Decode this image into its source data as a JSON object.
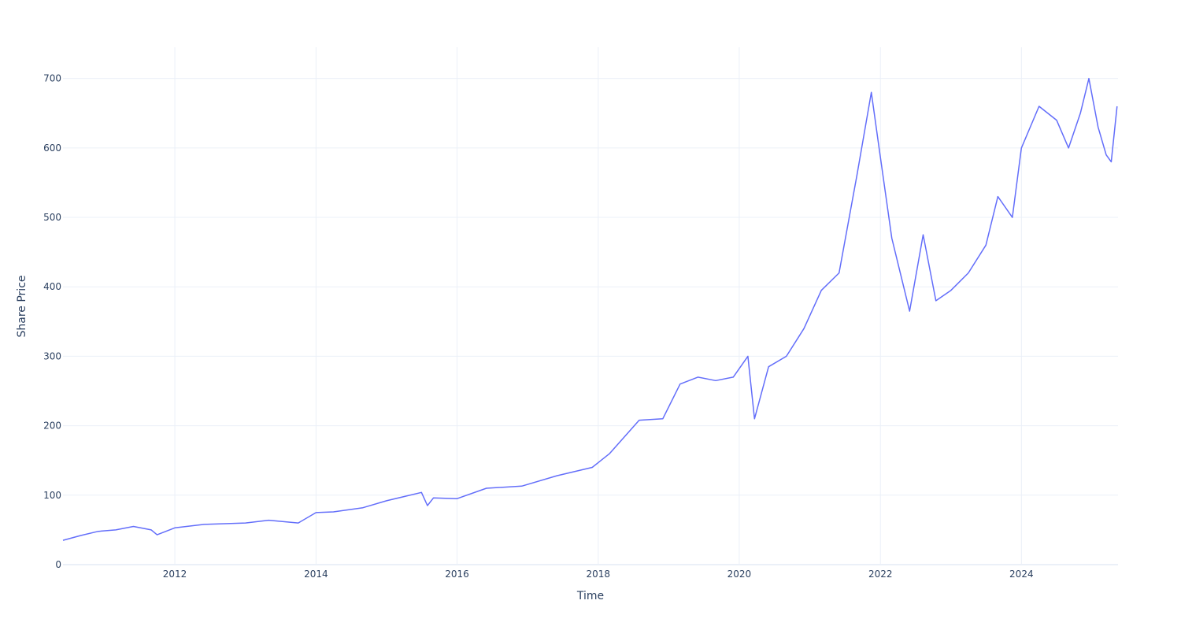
{
  "chart_data": {
    "type": "line",
    "title": "",
    "xlabel": "Time",
    "ylabel": "Share Price",
    "xlim": [
      "2010-06-01",
      "2025-05-15"
    ],
    "ylim": [
      0,
      745
    ],
    "x_ticks": [
      "2012",
      "2014",
      "2016",
      "2018",
      "2020",
      "2022",
      "2024"
    ],
    "y_ticks": [
      0,
      100,
      200,
      300,
      400,
      500,
      600,
      700
    ],
    "grid": true,
    "legend": "none",
    "line_color": "#636efa",
    "series": [
      {
        "x": [
          "2010-06-01",
          "2010-09-01",
          "2010-12-01",
          "2011-03-01",
          "2011-06-01",
          "2011-09-01",
          "2011-10-01",
          "2012-01-01",
          "2012-06-01",
          "2013-01-01",
          "2013-05-01",
          "2013-10-01",
          "2014-01-01",
          "2014-04-01",
          "2014-09-01",
          "2015-01-01",
          "2015-07-01",
          "2015-08-01",
          "2015-09-01",
          "2016-01-01",
          "2016-06-01",
          "2016-12-01",
          "2017-06-01",
          "2017-12-01",
          "2018-03-01",
          "2018-08-01",
          "2018-12-01",
          "2019-03-01",
          "2019-06-01",
          "2019-09-01",
          "2019-12-01",
          "2020-02-15",
          "2020-03-20",
          "2020-06-01",
          "2020-09-01",
          "2020-12-01",
          "2021-03-01",
          "2021-06-01",
          "2021-09-01",
          "2021-11-15",
          "2021-12-20",
          "2022-03-01",
          "2022-06-01",
          "2022-08-10",
          "2022-10-15",
          "2023-01-01",
          "2023-04-01",
          "2023-07-01",
          "2023-09-01",
          "2023-11-15",
          "2024-01-01",
          "2024-04-01",
          "2024-07-01",
          "2024-09-01",
          "2024-11-01",
          "2024-12-15",
          "2025-02-01",
          "2025-03-15",
          "2025-04-10",
          "2025-05-10"
        ],
        "y": [
          35,
          42,
          48,
          50,
          55,
          50,
          43,
          53,
          58,
          60,
          64,
          60,
          75,
          76,
          82,
          92,
          104,
          85,
          96,
          95,
          110,
          113,
          128,
          140,
          160,
          208,
          210,
          260,
          270,
          265,
          270,
          300,
          210,
          285,
          300,
          340,
          395,
          420,
          560,
          680,
          610,
          470,
          365,
          475,
          380,
          395,
          420,
          460,
          530,
          500,
          600,
          660,
          640,
          600,
          650,
          700,
          630,
          590,
          580,
          660
        ]
      }
    ]
  }
}
